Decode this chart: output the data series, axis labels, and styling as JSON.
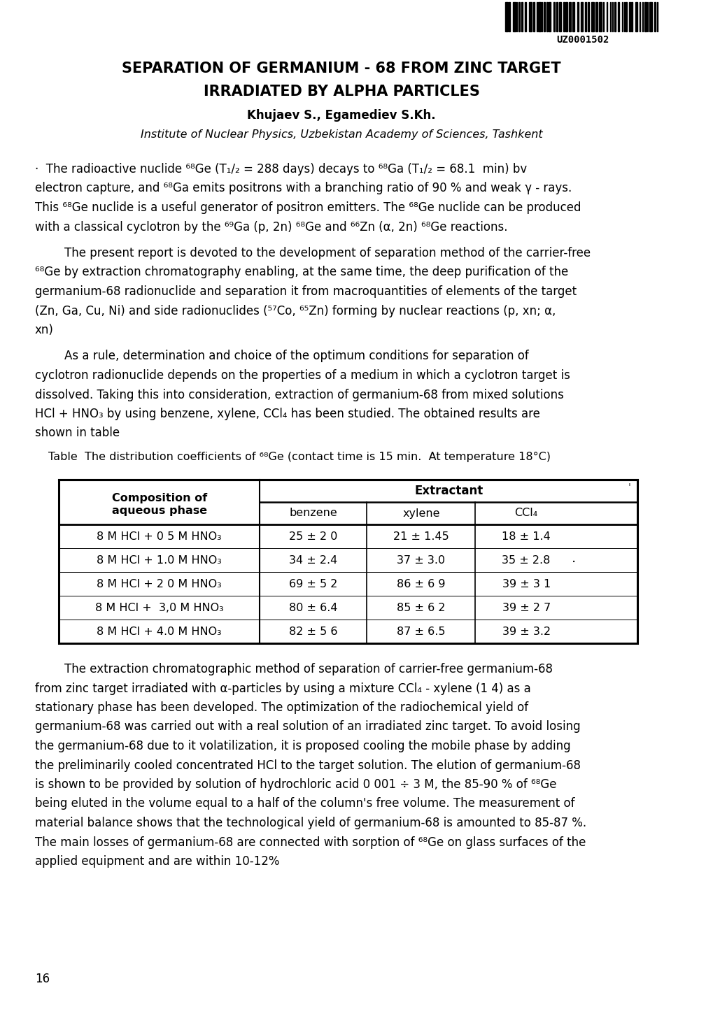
{
  "barcode_text": "UZ0001502",
  "title_line1": "SEPARATION OF GERMANIUM - 68 FROM ZINC TARGET",
  "title_line2": "IRRADIATED BY ALPHA PARTICLES",
  "authors": "Khujaev S., Egamediev S.Kh.",
  "institute": "Institute of Nuclear Physics, Uzbekistan Academy of Sciences, Tashkent",
  "table_caption": "Table  The distribution coefficients of ⁶⁸Ge (contact time is 15 min.  At temperature 18°C)",
  "table_header_top": "Extractant",
  "table_headers": [
    "Composition of\naqueous phase",
    "benzene",
    "xylene",
    "CCl₄"
  ],
  "table_rows": [
    [
      "8 M HCl + 0 5 M HNO₃",
      "25 ± 2 0",
      "21 ± 1.45",
      "18 ± 1.4"
    ],
    [
      "8 M HCl + 1.0 M HNO₃",
      "34 ± 2.4",
      "37 ± 3.0",
      "35 ± 2.8"
    ],
    [
      "8 M HCl + 2 0 M HNO₃",
      "69 ± 5 2",
      "86 ± 6 9",
      "39 ± 3 1"
    ],
    [
      "8 M HCl +  3,0 M HNO₃",
      "80 ± 6.4",
      "85 ± 6 2",
      "39 ± 2 7"
    ],
    [
      "8 M HCl + 4.0 M HNO₃",
      "82 ± 5 6",
      "87 ± 6.5",
      "39 ± 3.2"
    ]
  ],
  "page_number": "16",
  "bg_color": "#ffffff",
  "text_color": "#000000",
  "body_lines_para1": [
    "·  The radioactive nuclide ⁶⁸Ge (T₁/₂ = 288 days) decays to ⁶⁸Ga (T₁/₂ = 68.1  min) bv",
    "electron capture, and ⁶⁸Ga emits positrons with a branching ratio of 90 % and weak γ - rays.",
    "This ⁶⁸Ge nuclide is a useful generator of positron emitters. The ⁶⁸Ge nuclide can be produced",
    "with a classical cyclotron by the ⁶⁹Ga (p, 2n) ⁶⁸Ge and ⁶⁶Zn (α, 2n) ⁶⁸Ge reactions."
  ],
  "body_lines_para2": [
    "        The present report is devoted to the development of separation method of the carrier-free",
    "⁶⁸Ge by extraction chromatography enabling, at the same time, the deep purification of the",
    "germanium-68 radionuclide and separation it from macroquantities of elements of the target",
    "(Zn, Ga, Cu, Ni) and side radionuclides (⁵⁷Co, ⁶⁵Zn) forming by nuclear reactions (p, xn; α,",
    "xn)"
  ],
  "body_lines_para3": [
    "        As a rule, determination and choice of the optimum conditions for separation of",
    "cyclotron radionuclide depends on the properties of a medium in which a cyclotron target is",
    "dissolved. Taking this into consideration, extraction of germanium-68 from mixed solutions",
    "HCl + HNO₃ by using benzene, xylene, CCl₄ has been studied. The obtained results are",
    "shown in table"
  ],
  "body_lines_para4": [
    "        The extraction chromatographic method of separation of carrier-free germanium-68",
    "from zinc target irradiated with α-particles by using a mixture CCl₄ - xylene (1 4) as a",
    "stationary phase has been developed. The optimization of the radiochemical yield of",
    "germanium-68 was carried out with a real solution of an irradiated zinc target. To avoid losing",
    "the germanium-68 due to it volatilization, it is proposed cooling the mobile phase by adding",
    "the preliminarily cooled concentrated HCl to the target solution. The elution of germanium-68",
    "is shown to be provided by solution of hydrochloric acid 0 001 ÷ 3 M, the 85-90 % of ⁶⁸Ge",
    "being eluted in the volume equal to a half of the column's free volume. The measurement of",
    "material balance shows that the technological yield of germanium-68 is amounted to 85-87 %.",
    "The main losses of germanium-68 are connected with sorption of ⁶⁸Ge on glass surfaces of the",
    "applied equipment and are within 10-12%"
  ]
}
